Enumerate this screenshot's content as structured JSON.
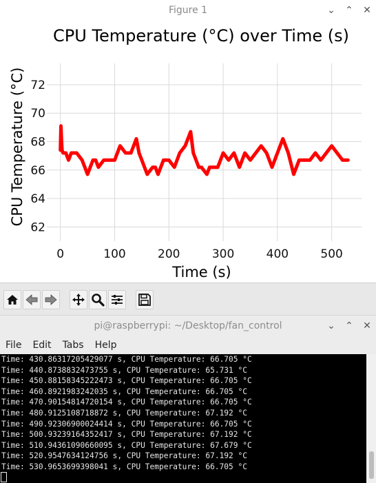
{
  "figure": {
    "title": "Figure 1",
    "controls": {
      "minimize": "⌄",
      "maximize": "⌃",
      "close": "✕"
    },
    "toolbar": [
      "home-icon",
      "back-icon",
      "forward-icon",
      "pan-icon",
      "zoom-icon",
      "configure-subplots-icon",
      "save-icon"
    ]
  },
  "chart_data": {
    "type": "line",
    "title": "CPU Temperature (°C) over Time (s)",
    "xlabel": "Time (s)",
    "ylabel": "CPU Temperature (°C)",
    "xlim": [
      -25,
      555
    ],
    "ylim": [
      61,
      73.5
    ],
    "xticks": [
      0,
      100,
      200,
      300,
      400,
      500
    ],
    "yticks": [
      62,
      64,
      66,
      68,
      70,
      72
    ],
    "grid": true,
    "series": [
      {
        "color": "#ff0000",
        "x": [
          0,
          1,
          2,
          3,
          5,
          10,
          15,
          20,
          30,
          40,
          50,
          55,
          60,
          65,
          70,
          80,
          90,
          100,
          110,
          120,
          130,
          140,
          145,
          150,
          160,
          170,
          175,
          180,
          190,
          200,
          210,
          220,
          230,
          240,
          245,
          250,
          255,
          260,
          270,
          275,
          280,
          290,
          300,
          310,
          320,
          330,
          340,
          350,
          360,
          370,
          380,
          390,
          400,
          410,
          415,
          420,
          430,
          440,
          450,
          460,
          470,
          480,
          490,
          500,
          510,
          520,
          530
        ],
        "y": [
          67.4,
          69.1,
          68.1,
          67.4,
          67.2,
          67.2,
          66.7,
          67.2,
          67.2,
          66.7,
          65.7,
          66.2,
          66.7,
          66.7,
          66.2,
          66.7,
          66.7,
          66.7,
          67.7,
          67.2,
          67.2,
          68.2,
          67.2,
          66.7,
          65.7,
          66.2,
          66.2,
          65.7,
          66.7,
          66.7,
          66.2,
          67.2,
          67.7,
          68.7,
          67.2,
          66.7,
          66.2,
          66.2,
          65.7,
          66.2,
          66.2,
          66.2,
          67.2,
          66.7,
          67.2,
          66.2,
          67.2,
          66.7,
          67.2,
          67.7,
          67.2,
          66.2,
          67.2,
          68.2,
          67.7,
          67.2,
          65.7,
          66.7,
          66.7,
          66.7,
          67.2,
          66.7,
          67.2,
          67.7,
          67.2,
          66.7,
          66.7
        ]
      }
    ]
  },
  "terminal": {
    "title": "pi@raspberrypi: ~/Desktop/fan_control",
    "controls": {
      "minimize": "⌄",
      "maximize": "⌃",
      "close": "✕"
    },
    "menu": [
      "File",
      "Edit",
      "Tabs",
      "Help"
    ],
    "lines": [
      "Time: 430.86317205429077 s, CPU Temperature: 66.705 °C",
      "Time: 440.8738832473755 s, CPU Temperature: 65.731 °C",
      "Time: 450.88158345222473 s, CPU Temperature: 66.705 °C",
      "Time: 460.8921983242035 s, CPU Temperature: 66.705 °C",
      "Time: 470.90154814720154 s, CPU Temperature: 66.705 °C",
      "Time: 480.9125108718872 s, CPU Temperature: 67.192 °C",
      "Time: 490.92306900024414 s, CPU Temperature: 66.705 °C",
      "Time: 500.93239164352417 s, CPU Temperature: 67.192 °C",
      "Time: 510.94361090660095 s, CPU Temperature: 67.679 °C",
      "Time: 520.9547634124756 s, CPU Temperature: 67.192 °C",
      "Time: 530.9653699398041 s, CPU Temperature: 66.705 °C"
    ]
  }
}
